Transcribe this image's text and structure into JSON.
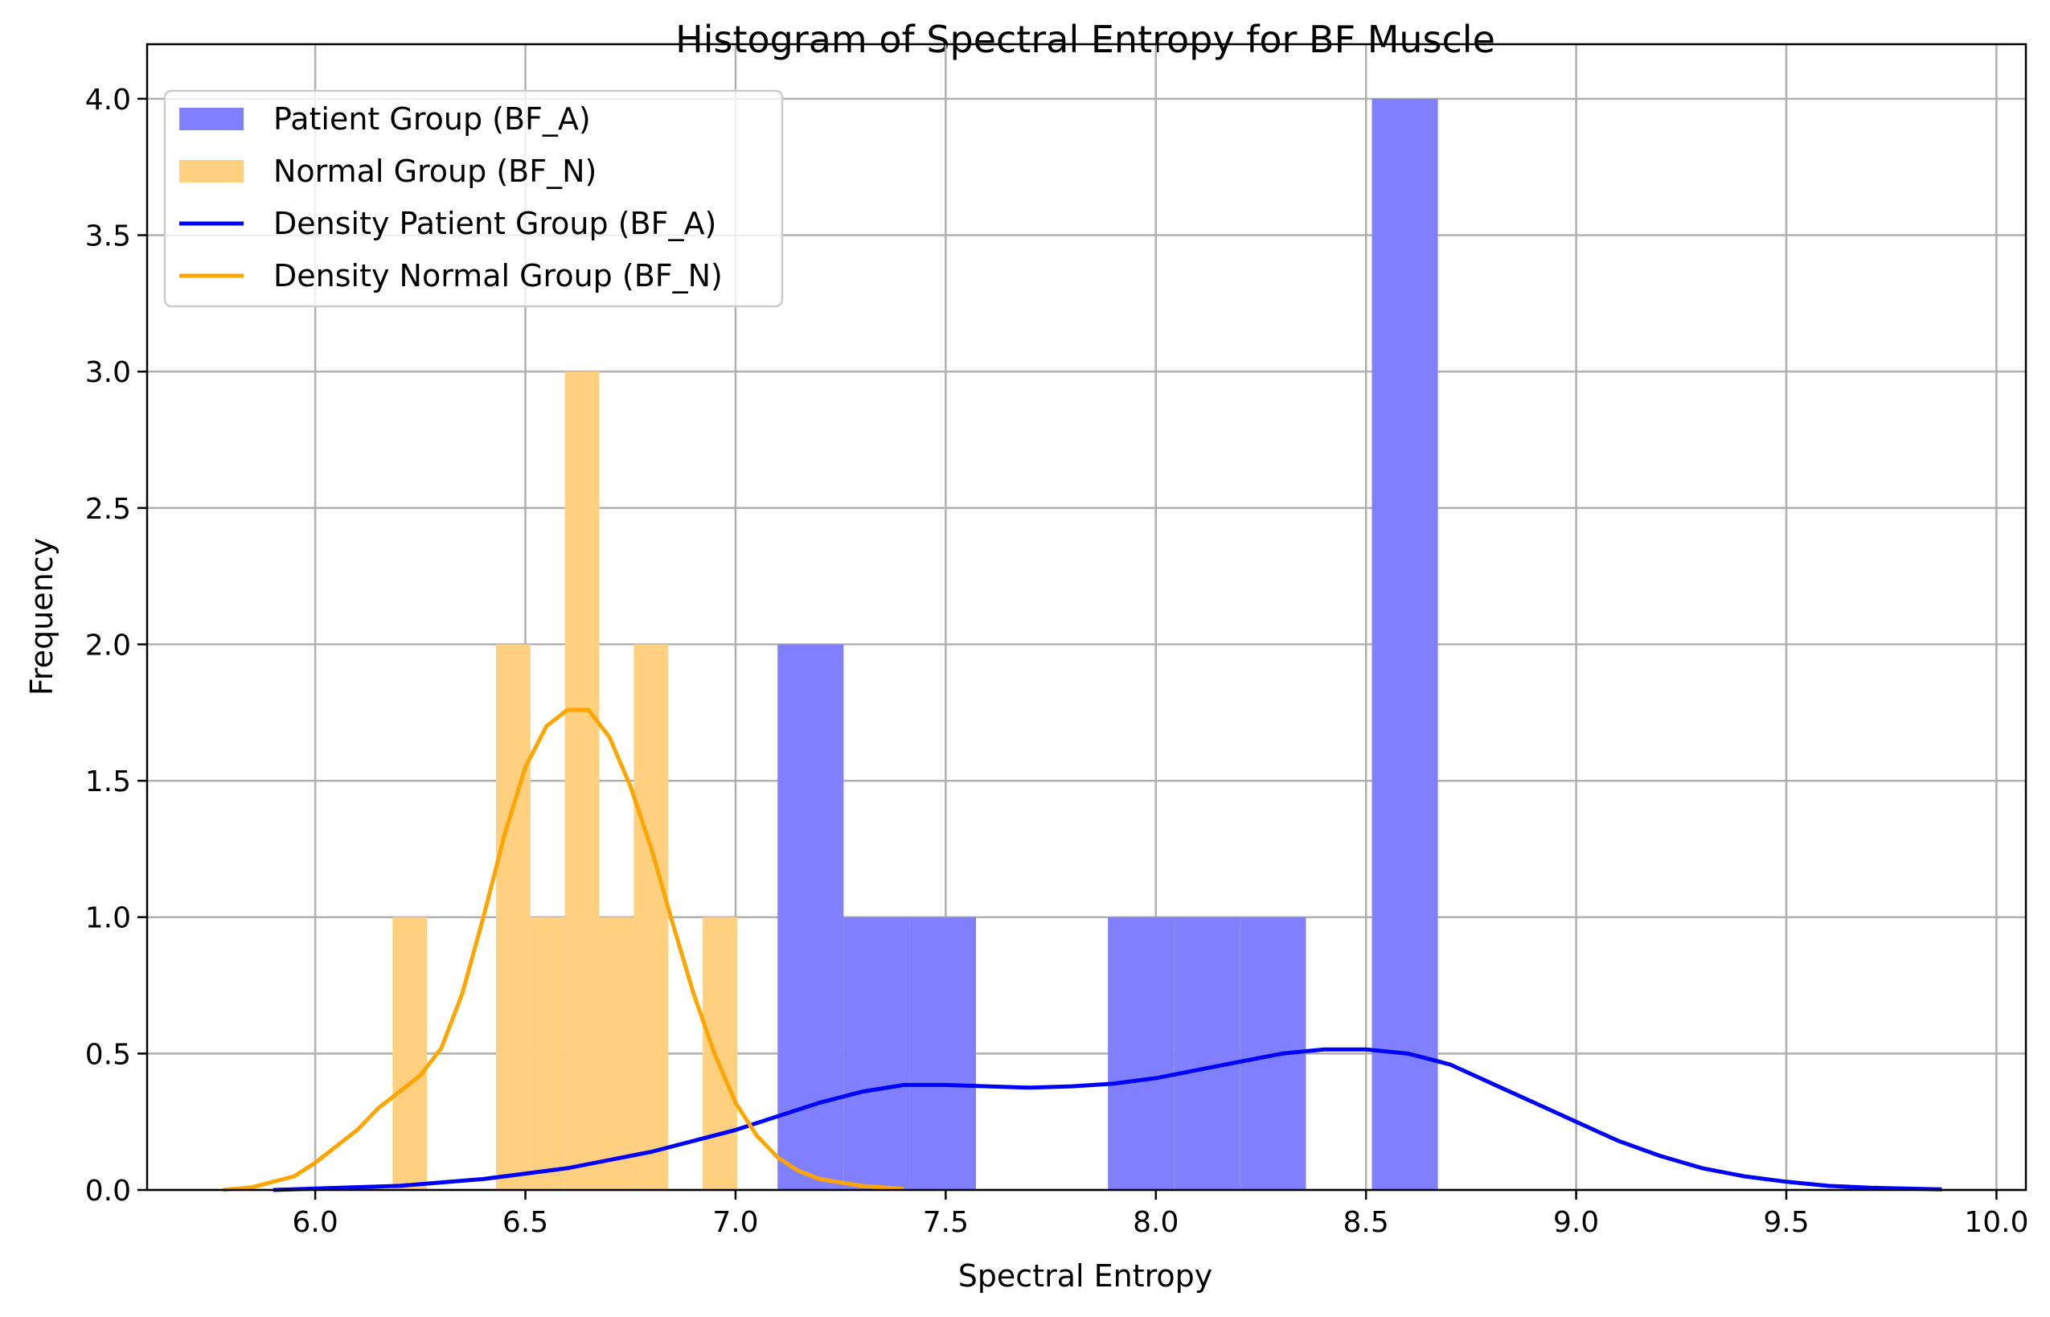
{
  "chart_data": {
    "type": "bar",
    "title": "Histogram of Spectral Entropy for BF Muscle",
    "xlabel": "Spectral Entropy",
    "ylabel": "Frequency",
    "xlim": [
      5.6,
      10.07
    ],
    "ylim": [
      0,
      4.2
    ],
    "xticks": [
      "6.0",
      "6.5",
      "7.0",
      "7.5",
      "8.0",
      "8.5",
      "9.0",
      "9.5",
      "10.0"
    ],
    "yticks": [
      "0.0",
      "0.5",
      "1.0",
      "1.5",
      "2.0",
      "2.5",
      "3.0",
      "3.5",
      "4.0"
    ],
    "grid": true,
    "legend_position": "top-left",
    "histograms": [
      {
        "name": "Patient Group (BF_A)",
        "color": "#8080ff",
        "bins": [
          {
            "x0": 7.1,
            "x1": 7.257,
            "count": 2
          },
          {
            "x0": 7.257,
            "x1": 7.415,
            "count": 1
          },
          {
            "x0": 7.415,
            "x1": 7.572,
            "count": 1
          },
          {
            "x0": 7.886,
            "x1": 8.043,
            "count": 1
          },
          {
            "x0": 8.043,
            "x1": 8.2,
            "count": 1
          },
          {
            "x0": 8.2,
            "x1": 8.357,
            "count": 1
          },
          {
            "x0": 8.514,
            "x1": 8.671,
            "count": 4
          }
        ]
      },
      {
        "name": "Normal Group (BF_N)",
        "color": "#ffd080",
        "bins": [
          {
            "x0": 6.184,
            "x1": 6.266,
            "count": 1
          },
          {
            "x0": 6.43,
            "x1": 6.512,
            "count": 2
          },
          {
            "x0": 6.512,
            "x1": 6.594,
            "count": 1
          },
          {
            "x0": 6.594,
            "x1": 6.676,
            "count": 3
          },
          {
            "x0": 6.676,
            "x1": 6.758,
            "count": 1
          },
          {
            "x0": 6.758,
            "x1": 6.84,
            "count": 2
          },
          {
            "x0": 6.922,
            "x1": 7.004,
            "count": 1
          }
        ]
      }
    ],
    "density_lines": [
      {
        "name": "Density Patient Group (BF_A)",
        "color": "#0000ff",
        "points": [
          [
            5.9,
            0.0
          ],
          [
            6.0,
            0.005
          ],
          [
            6.2,
            0.015
          ],
          [
            6.4,
            0.04
          ],
          [
            6.6,
            0.08
          ],
          [
            6.8,
            0.14
          ],
          [
            7.0,
            0.22
          ],
          [
            7.2,
            0.32
          ],
          [
            7.3,
            0.36
          ],
          [
            7.4,
            0.385
          ],
          [
            7.5,
            0.385
          ],
          [
            7.6,
            0.38
          ],
          [
            7.7,
            0.375
          ],
          [
            7.8,
            0.38
          ],
          [
            7.9,
            0.39
          ],
          [
            8.0,
            0.41
          ],
          [
            8.1,
            0.44
          ],
          [
            8.2,
            0.47
          ],
          [
            8.3,
            0.5
          ],
          [
            8.4,
            0.515
          ],
          [
            8.5,
            0.515
          ],
          [
            8.6,
            0.5
          ],
          [
            8.7,
            0.46
          ],
          [
            8.8,
            0.39
          ],
          [
            8.9,
            0.32
          ],
          [
            9.0,
            0.25
          ],
          [
            9.1,
            0.18
          ],
          [
            9.2,
            0.125
          ],
          [
            9.3,
            0.08
          ],
          [
            9.4,
            0.05
          ],
          [
            9.5,
            0.03
          ],
          [
            9.6,
            0.015
          ],
          [
            9.7,
            0.008
          ],
          [
            9.87,
            0.002
          ]
        ]
      },
      {
        "name": "Density Normal Group (BF_N)",
        "color": "#ffa500",
        "points": [
          [
            5.78,
            0.0
          ],
          [
            5.85,
            0.01
          ],
          [
            5.95,
            0.05
          ],
          [
            6.0,
            0.1
          ],
          [
            6.1,
            0.22
          ],
          [
            6.15,
            0.3
          ],
          [
            6.2,
            0.36
          ],
          [
            6.25,
            0.42
          ],
          [
            6.3,
            0.52
          ],
          [
            6.35,
            0.72
          ],
          [
            6.4,
            1.0
          ],
          [
            6.45,
            1.3
          ],
          [
            6.5,
            1.55
          ],
          [
            6.55,
            1.7
          ],
          [
            6.6,
            1.76
          ],
          [
            6.65,
            1.76
          ],
          [
            6.7,
            1.66
          ],
          [
            6.75,
            1.48
          ],
          [
            6.8,
            1.25
          ],
          [
            6.85,
            0.98
          ],
          [
            6.9,
            0.72
          ],
          [
            6.95,
            0.5
          ],
          [
            7.0,
            0.32
          ],
          [
            7.05,
            0.2
          ],
          [
            7.1,
            0.12
          ],
          [
            7.15,
            0.07
          ],
          [
            7.2,
            0.04
          ],
          [
            7.3,
            0.015
          ],
          [
            7.4,
            0.004
          ]
        ]
      }
    ]
  }
}
